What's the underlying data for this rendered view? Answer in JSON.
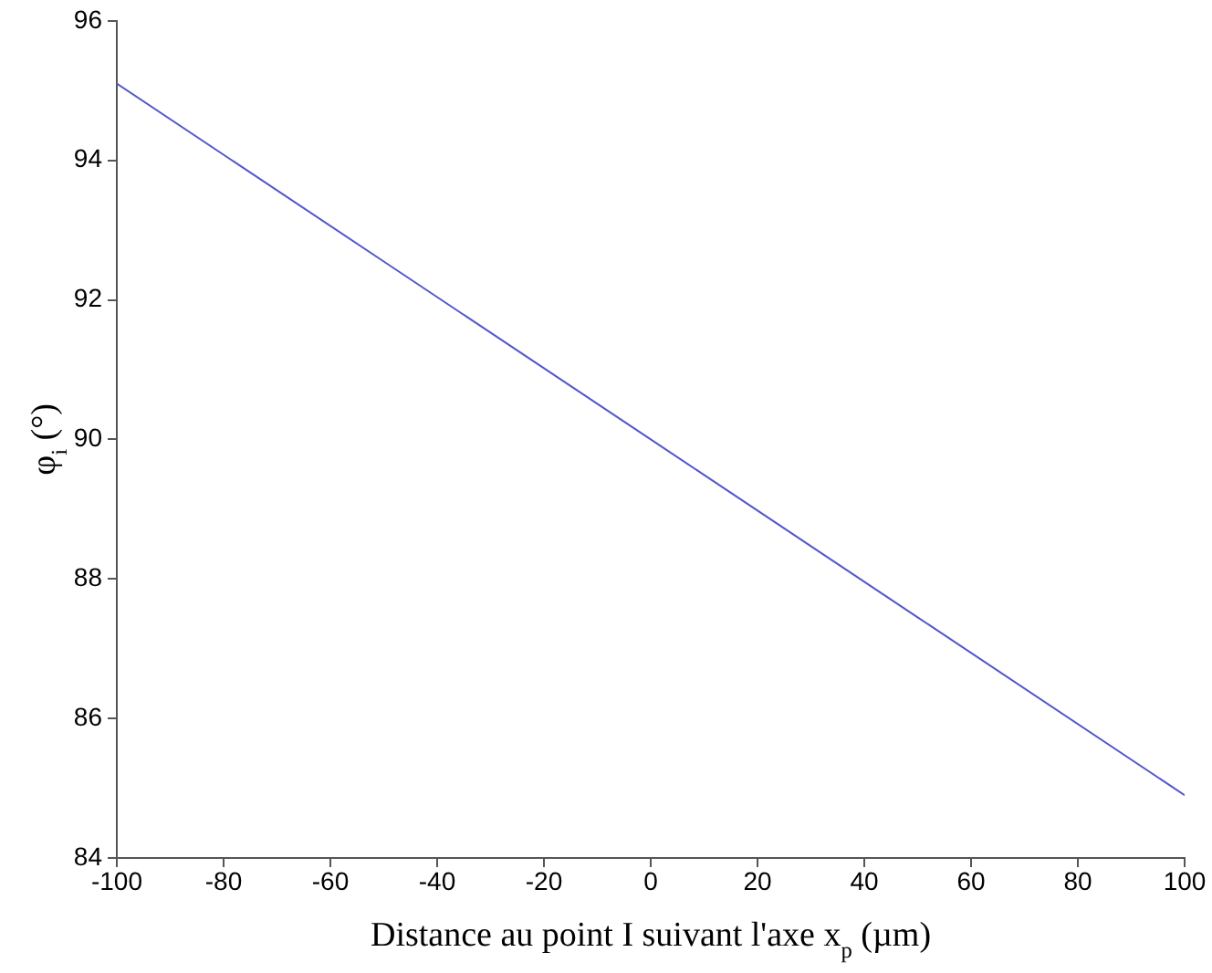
{
  "chart_data": {
    "type": "line",
    "xlabel": "Distance au point I suivant l'axe x$_{p}$ (µm)",
    "ylabel": "φ$_{i}$ (°)",
    "x": [
      -100,
      -50,
      0,
      50,
      100
    ],
    "series": [
      {
        "color": "#5555cc",
        "values": [
          95.1,
          92.55,
          90,
          87.45,
          84.9
        ]
      }
    ],
    "xlim": [
      -100,
      100
    ],
    "xticks": [
      -100,
      -80,
      -60,
      -40,
      -20,
      0,
      20,
      40,
      60,
      80,
      100
    ],
    "ylim": [
      84,
      96
    ],
    "yticks": [
      84,
      86,
      88,
      90,
      92,
      94,
      96
    ],
    "grid": false,
    "legend": false,
    "marker": "none",
    "line_style": "solid"
  }
}
